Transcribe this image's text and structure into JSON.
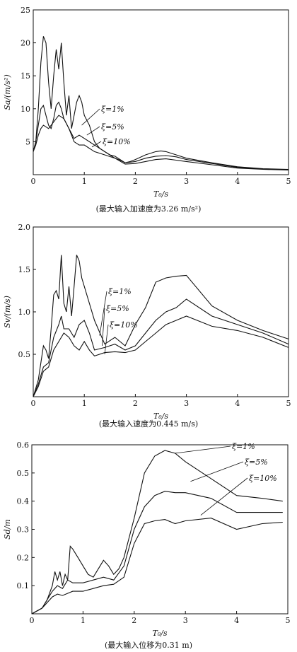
{
  "chart_data": [
    {
      "type": "line",
      "ylabel": "Sa/(m/s²)",
      "xlabel": "T₀/s",
      "caption": "(最大输入加速度为3.26 m/s²)",
      "xlim": [
        0,
        5
      ],
      "ylim": [
        0,
        25
      ],
      "xticks": [
        "0",
        "1",
        "2",
        "3",
        "4",
        "5"
      ],
      "yticks": [
        "5",
        "10",
        "15",
        "20",
        "25"
      ],
      "series": [
        {
          "name": "ξ=1%",
          "x": [
            0,
            0.05,
            0.1,
            0.15,
            0.2,
            0.25,
            0.3,
            0.35,
            0.4,
            0.45,
            0.5,
            0.55,
            0.6,
            0.65,
            0.7,
            0.75,
            0.8,
            0.85,
            0.9,
            0.95,
            1.0,
            1.1,
            1.2,
            1.3,
            1.4,
            1.5,
            1.6,
            1.7,
            1.8,
            1.9,
            2.0,
            2.2,
            2.4,
            2.5,
            2.6,
            2.8,
            3.0,
            3.5,
            4.0,
            4.5,
            5.0
          ],
          "y": [
            3.5,
            5,
            10,
            17,
            21,
            20,
            14,
            10,
            15,
            19,
            16,
            20,
            14,
            9,
            12,
            7,
            9,
            11,
            12,
            11,
            9,
            7.5,
            5,
            4,
            3.5,
            3,
            2.5,
            2.2,
            1.8,
            2,
            2.3,
            3,
            3.5,
            3.6,
            3.5,
            3,
            2.5,
            1.8,
            1.2,
            0.9,
            0.8
          ]
        },
        {
          "name": "ξ=5%",
          "x": [
            0,
            0.05,
            0.1,
            0.15,
            0.2,
            0.25,
            0.3,
            0.35,
            0.4,
            0.45,
            0.5,
            0.55,
            0.6,
            0.7,
            0.8,
            0.9,
            1.0,
            1.2,
            1.4,
            1.5,
            1.6,
            1.8,
            2.0,
            2.2,
            2.4,
            2.6,
            2.8,
            3.0,
            3.5,
            4.0,
            4.5,
            5.0
          ],
          "y": [
            3.5,
            5,
            7.5,
            10,
            10.5,
            9,
            7.5,
            7,
            8.5,
            10.5,
            11,
            10,
            8.5,
            7,
            5.5,
            6,
            5.5,
            4.5,
            3.5,
            3,
            2.8,
            1.8,
            2,
            2.5,
            2.8,
            2.9,
            2.7,
            2.3,
            1.7,
            1.1,
            0.85,
            0.75
          ]
        },
        {
          "name": "ξ=10%",
          "x": [
            0,
            0.05,
            0.1,
            0.15,
            0.2,
            0.3,
            0.4,
            0.5,
            0.6,
            0.7,
            0.8,
            0.9,
            1.0,
            1.2,
            1.4,
            1.6,
            1.8,
            2.0,
            2.2,
            2.4,
            2.6,
            2.8,
            3.0,
            3.5,
            4.0,
            4.5,
            5.0
          ],
          "y": [
            3.5,
            4.5,
            6,
            7,
            7.5,
            7,
            8,
            9,
            8.5,
            7,
            5,
            4.5,
            4.5,
            3.5,
            3,
            2.5,
            1.6,
            1.7,
            2,
            2.3,
            2.4,
            2.2,
            2,
            1.5,
            1,
            0.8,
            0.7
          ]
        }
      ]
    },
    {
      "type": "line",
      "ylabel": "Sv/(m/s)",
      "xlabel": "T₀/s",
      "caption": "(最大输入速度为0.445 m/s)",
      "xlim": [
        0,
        5
      ],
      "ylim": [
        0,
        2.0
      ],
      "xticks": [
        "0",
        "1",
        "2",
        "3",
        "4",
        "5"
      ],
      "yticks": [
        "0.5",
        "1.0",
        "1.5",
        "2.0"
      ],
      "series": [
        {
          "name": "ξ=1%",
          "x": [
            0,
            0.1,
            0.2,
            0.25,
            0.3,
            0.35,
            0.4,
            0.45,
            0.5,
            0.55,
            0.6,
            0.65,
            0.7,
            0.75,
            0.8,
            0.85,
            0.9,
            0.95,
            1.0,
            1.1,
            1.2,
            1.4,
            1.6,
            1.8,
            2.0,
            2.2,
            2.4,
            2.6,
            2.8,
            3.0,
            3.5,
            4.0,
            4.5,
            5.0
          ],
          "y": [
            0,
            0.2,
            0.6,
            0.55,
            0.45,
            0.8,
            1.2,
            1.25,
            1.15,
            1.67,
            1.1,
            1.0,
            1.3,
            0.95,
            1.3,
            1.67,
            1.6,
            1.4,
            1.3,
            1.1,
            0.9,
            0.62,
            0.7,
            0.6,
            0.85,
            1.05,
            1.35,
            1.4,
            1.42,
            1.43,
            1.07,
            0.9,
            0.78,
            0.68
          ]
        },
        {
          "name": "ξ=5%",
          "x": [
            0,
            0.1,
            0.2,
            0.3,
            0.4,
            0.5,
            0.55,
            0.6,
            0.7,
            0.8,
            0.9,
            1.0,
            1.1,
            1.2,
            1.4,
            1.6,
            1.8,
            2.0,
            2.2,
            2.4,
            2.6,
            2.8,
            3.0,
            3.5,
            4.0,
            4.5,
            5.0
          ],
          "y": [
            0,
            0.15,
            0.35,
            0.4,
            0.7,
            0.85,
            0.95,
            0.8,
            0.8,
            0.7,
            0.85,
            0.9,
            0.75,
            0.55,
            0.58,
            0.62,
            0.55,
            0.6,
            0.75,
            0.9,
            1.0,
            1.05,
            1.15,
            0.95,
            0.85,
            0.75,
            0.62
          ]
        },
        {
          "name": "ξ=10%",
          "x": [
            0,
            0.1,
            0.2,
            0.3,
            0.4,
            0.5,
            0.6,
            0.7,
            0.8,
            0.9,
            1.0,
            1.1,
            1.2,
            1.4,
            1.6,
            1.8,
            2.0,
            2.2,
            2.4,
            2.6,
            2.8,
            3.0,
            3.5,
            4.0,
            4.5,
            5.0
          ],
          "y": [
            0,
            0.12,
            0.3,
            0.35,
            0.55,
            0.65,
            0.75,
            0.7,
            0.6,
            0.55,
            0.65,
            0.55,
            0.48,
            0.52,
            0.53,
            0.52,
            0.55,
            0.65,
            0.75,
            0.85,
            0.9,
            0.95,
            0.83,
            0.78,
            0.7,
            0.58
          ]
        }
      ]
    },
    {
      "type": "line",
      "ylabel": "Sd/m",
      "xlabel": "T₀/s",
      "caption": "(最大输入位移为0.31 m)",
      "xlim": [
        0,
        5
      ],
      "ylim": [
        0,
        0.6
      ],
      "xticks": [
        "0",
        "1",
        "2",
        "3",
        "4",
        "5"
      ],
      "yticks": [
        "0.1",
        "0.2",
        "0.3",
        "0.4",
        "0.5",
        "0.6"
      ],
      "series": [
        {
          "name": "ξ=1%",
          "x": [
            0,
            0.1,
            0.2,
            0.3,
            0.4,
            0.45,
            0.5,
            0.55,
            0.6,
            0.65,
            0.7,
            0.75,
            0.8,
            0.9,
            1.0,
            1.1,
            1.2,
            1.3,
            1.4,
            1.5,
            1.6,
            1.7,
            1.8,
            2.0,
            2.2,
            2.4,
            2.6,
            2.8,
            3.0,
            3.5,
            4.0,
            4.5,
            4.9
          ],
          "y": [
            0,
            0.01,
            0.02,
            0.05,
            0.1,
            0.15,
            0.12,
            0.15,
            0.1,
            0.14,
            0.12,
            0.24,
            0.23,
            0.2,
            0.17,
            0.14,
            0.13,
            0.16,
            0.19,
            0.17,
            0.14,
            0.16,
            0.2,
            0.34,
            0.5,
            0.56,
            0.58,
            0.57,
            0.54,
            0.48,
            0.42,
            0.41,
            0.4
          ]
        },
        {
          "name": "ξ=5%",
          "x": [
            0,
            0.2,
            0.4,
            0.5,
            0.6,
            0.7,
            0.8,
            1.0,
            1.2,
            1.4,
            1.6,
            1.8,
            2.0,
            2.2,
            2.4,
            2.6,
            2.8,
            3.0,
            3.5,
            4.0,
            4.5,
            4.9
          ],
          "y": [
            0,
            0.02,
            0.08,
            0.1,
            0.09,
            0.12,
            0.11,
            0.11,
            0.12,
            0.13,
            0.12,
            0.17,
            0.3,
            0.38,
            0.42,
            0.435,
            0.43,
            0.43,
            0.41,
            0.36,
            0.36,
            0.36
          ]
        },
        {
          "name": "ξ=10%",
          "x": [
            0,
            0.2,
            0.4,
            0.5,
            0.6,
            0.8,
            1.0,
            1.2,
            1.4,
            1.6,
            1.8,
            2.0,
            2.2,
            2.4,
            2.6,
            2.8,
            3.0,
            3.5,
            4.0,
            4.5,
            4.9
          ],
          "y": [
            0,
            0.02,
            0.06,
            0.07,
            0.065,
            0.08,
            0.08,
            0.09,
            0.1,
            0.105,
            0.13,
            0.25,
            0.32,
            0.33,
            0.335,
            0.32,
            0.33,
            0.34,
            0.3,
            0.32,
            0.325
          ]
        }
      ]
    }
  ]
}
